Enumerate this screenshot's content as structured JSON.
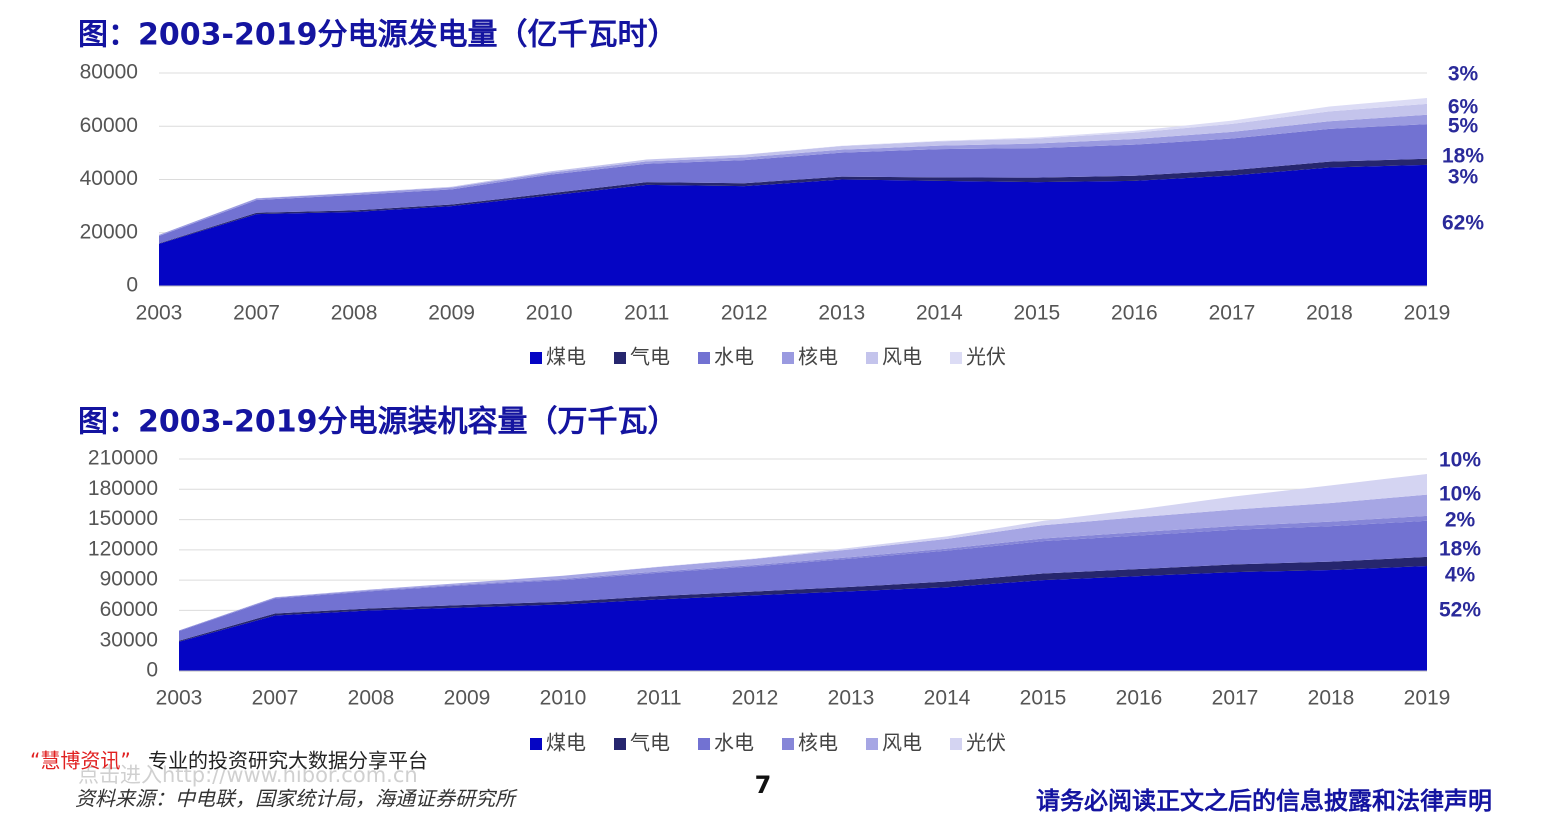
{
  "chart_data": [
    {
      "type": "area",
      "stacked": true,
      "title": "图：2003-2019分电源发电量（亿千瓦时）",
      "categories": [
        "2003",
        "2007",
        "2008",
        "2009",
        "2010",
        "2011",
        "2012",
        "2013",
        "2014",
        "2015",
        "2016",
        "2017",
        "2018",
        "2019"
      ],
      "ylim": [
        0,
        80000
      ],
      "yticks": [
        0,
        20000,
        40000,
        60000,
        80000
      ],
      "grid": true,
      "series": [
        {
          "name": "煤电",
          "color": "#0505c4",
          "share": "62%",
          "values": [
            15800,
            27000,
            27800,
            30000,
            34000,
            38000,
            37500,
            40000,
            39500,
            39000,
            39500,
            41500,
            44500,
            45500
          ]
        },
        {
          "name": "气电",
          "color": "#26266e",
          "share": "3%",
          "values": [
            200,
            500,
            600,
            600,
            800,
            1000,
            1100,
            1100,
            1300,
            1700,
            1900,
            2000,
            2200,
            2300
          ]
        },
        {
          "name": "水电",
          "color": "#7272d2",
          "share": "18%",
          "values": [
            2800,
            4800,
            5800,
            5700,
            7000,
            6900,
            8700,
            9000,
            10600,
            11100,
            11700,
            11900,
            12300,
            13000
          ]
        },
        {
          "name": "核电",
          "color": "#9a9ae0",
          "share": "5%",
          "values": [
            400,
            600,
            700,
            700,
            700,
            900,
            1000,
            1100,
            1300,
            1700,
            2100,
            2500,
            2900,
            3500
          ]
        },
        {
          "name": "风电",
          "color": "#c4c4ec",
          "share": "6%",
          "values": [
            10,
            60,
            130,
            280,
            500,
            700,
            1000,
            1400,
            1600,
            1900,
            2400,
            3000,
            3700,
            4100
          ]
        },
        {
          "name": "光伏",
          "color": "#dcdcf5",
          "share": "3%",
          "values": [
            0,
            0,
            0,
            0,
            0,
            10,
            40,
            90,
            230,
            400,
            660,
            1200,
            1800,
            2200
          ]
        }
      ]
    },
    {
      "type": "area",
      "stacked": true,
      "title": "图：2003-2019分电源装机容量（万千瓦）",
      "categories": [
        "2003",
        "2007",
        "2008",
        "2009",
        "2010",
        "2011",
        "2012",
        "2013",
        "2014",
        "2015",
        "2016",
        "2017",
        "2018",
        "2019"
      ],
      "ylim": [
        0,
        210000
      ],
      "yticks": [
        0,
        30000,
        60000,
        90000,
        120000,
        150000,
        180000,
        210000
      ],
      "grid": true,
      "series": [
        {
          "name": "煤电",
          "color": "#0505c4",
          "share": "52%",
          "values": [
            29000,
            55000,
            60000,
            63000,
            66000,
            71000,
            75000,
            79000,
            83000,
            90000,
            94000,
            98000,
            100000,
            104000
          ]
        },
        {
          "name": "气电",
          "color": "#26266e",
          "share": "4%",
          "values": [
            1000,
            2000,
            2000,
            2500,
            2600,
            3300,
            3800,
            4300,
            5700,
            6600,
            7000,
            7600,
            8300,
            9000
          ]
        },
        {
          "name": "水电",
          "color": "#7272d2",
          "share": "18%",
          "values": [
            9500,
            14800,
            17000,
            19600,
            21600,
            23000,
            24900,
            28000,
            30500,
            32000,
            33200,
            34400,
            35200,
            35800
          ]
        },
        {
          "name": "核电",
          "color": "#8686d8",
          "share": "2%",
          "values": [
            600,
            900,
            900,
            900,
            1100,
            1300,
            1300,
            1500,
            2000,
            2700,
            3400,
            3600,
            4500,
            4900
          ]
        },
        {
          "name": "风电",
          "color": "#a6a6e4",
          "share": "10%",
          "values": [
            50,
            400,
            800,
            1600,
            3000,
            4600,
            6100,
            7700,
            9700,
            13100,
            14800,
            16400,
            18400,
            21000
          ]
        },
        {
          "name": "光伏",
          "color": "#d4d4f2",
          "share": "10%",
          "values": [
            0,
            0,
            0,
            0,
            30,
            200,
            340,
            1600,
            2500,
            4300,
            7700,
            13000,
            17500,
            20500
          ]
        }
      ]
    }
  ],
  "footer": {
    "brand": "“慧博资讯”",
    "slogan": "专业的投资研究大数据分享平台",
    "source": "资料来源：中电联，国家统计局，海通证券研究所",
    "page": "7",
    "disclaimer": "请务必阅读正文之后的信息披露和法律声明",
    "watermark": "点击进入http://www.hibor.com.cn"
  }
}
